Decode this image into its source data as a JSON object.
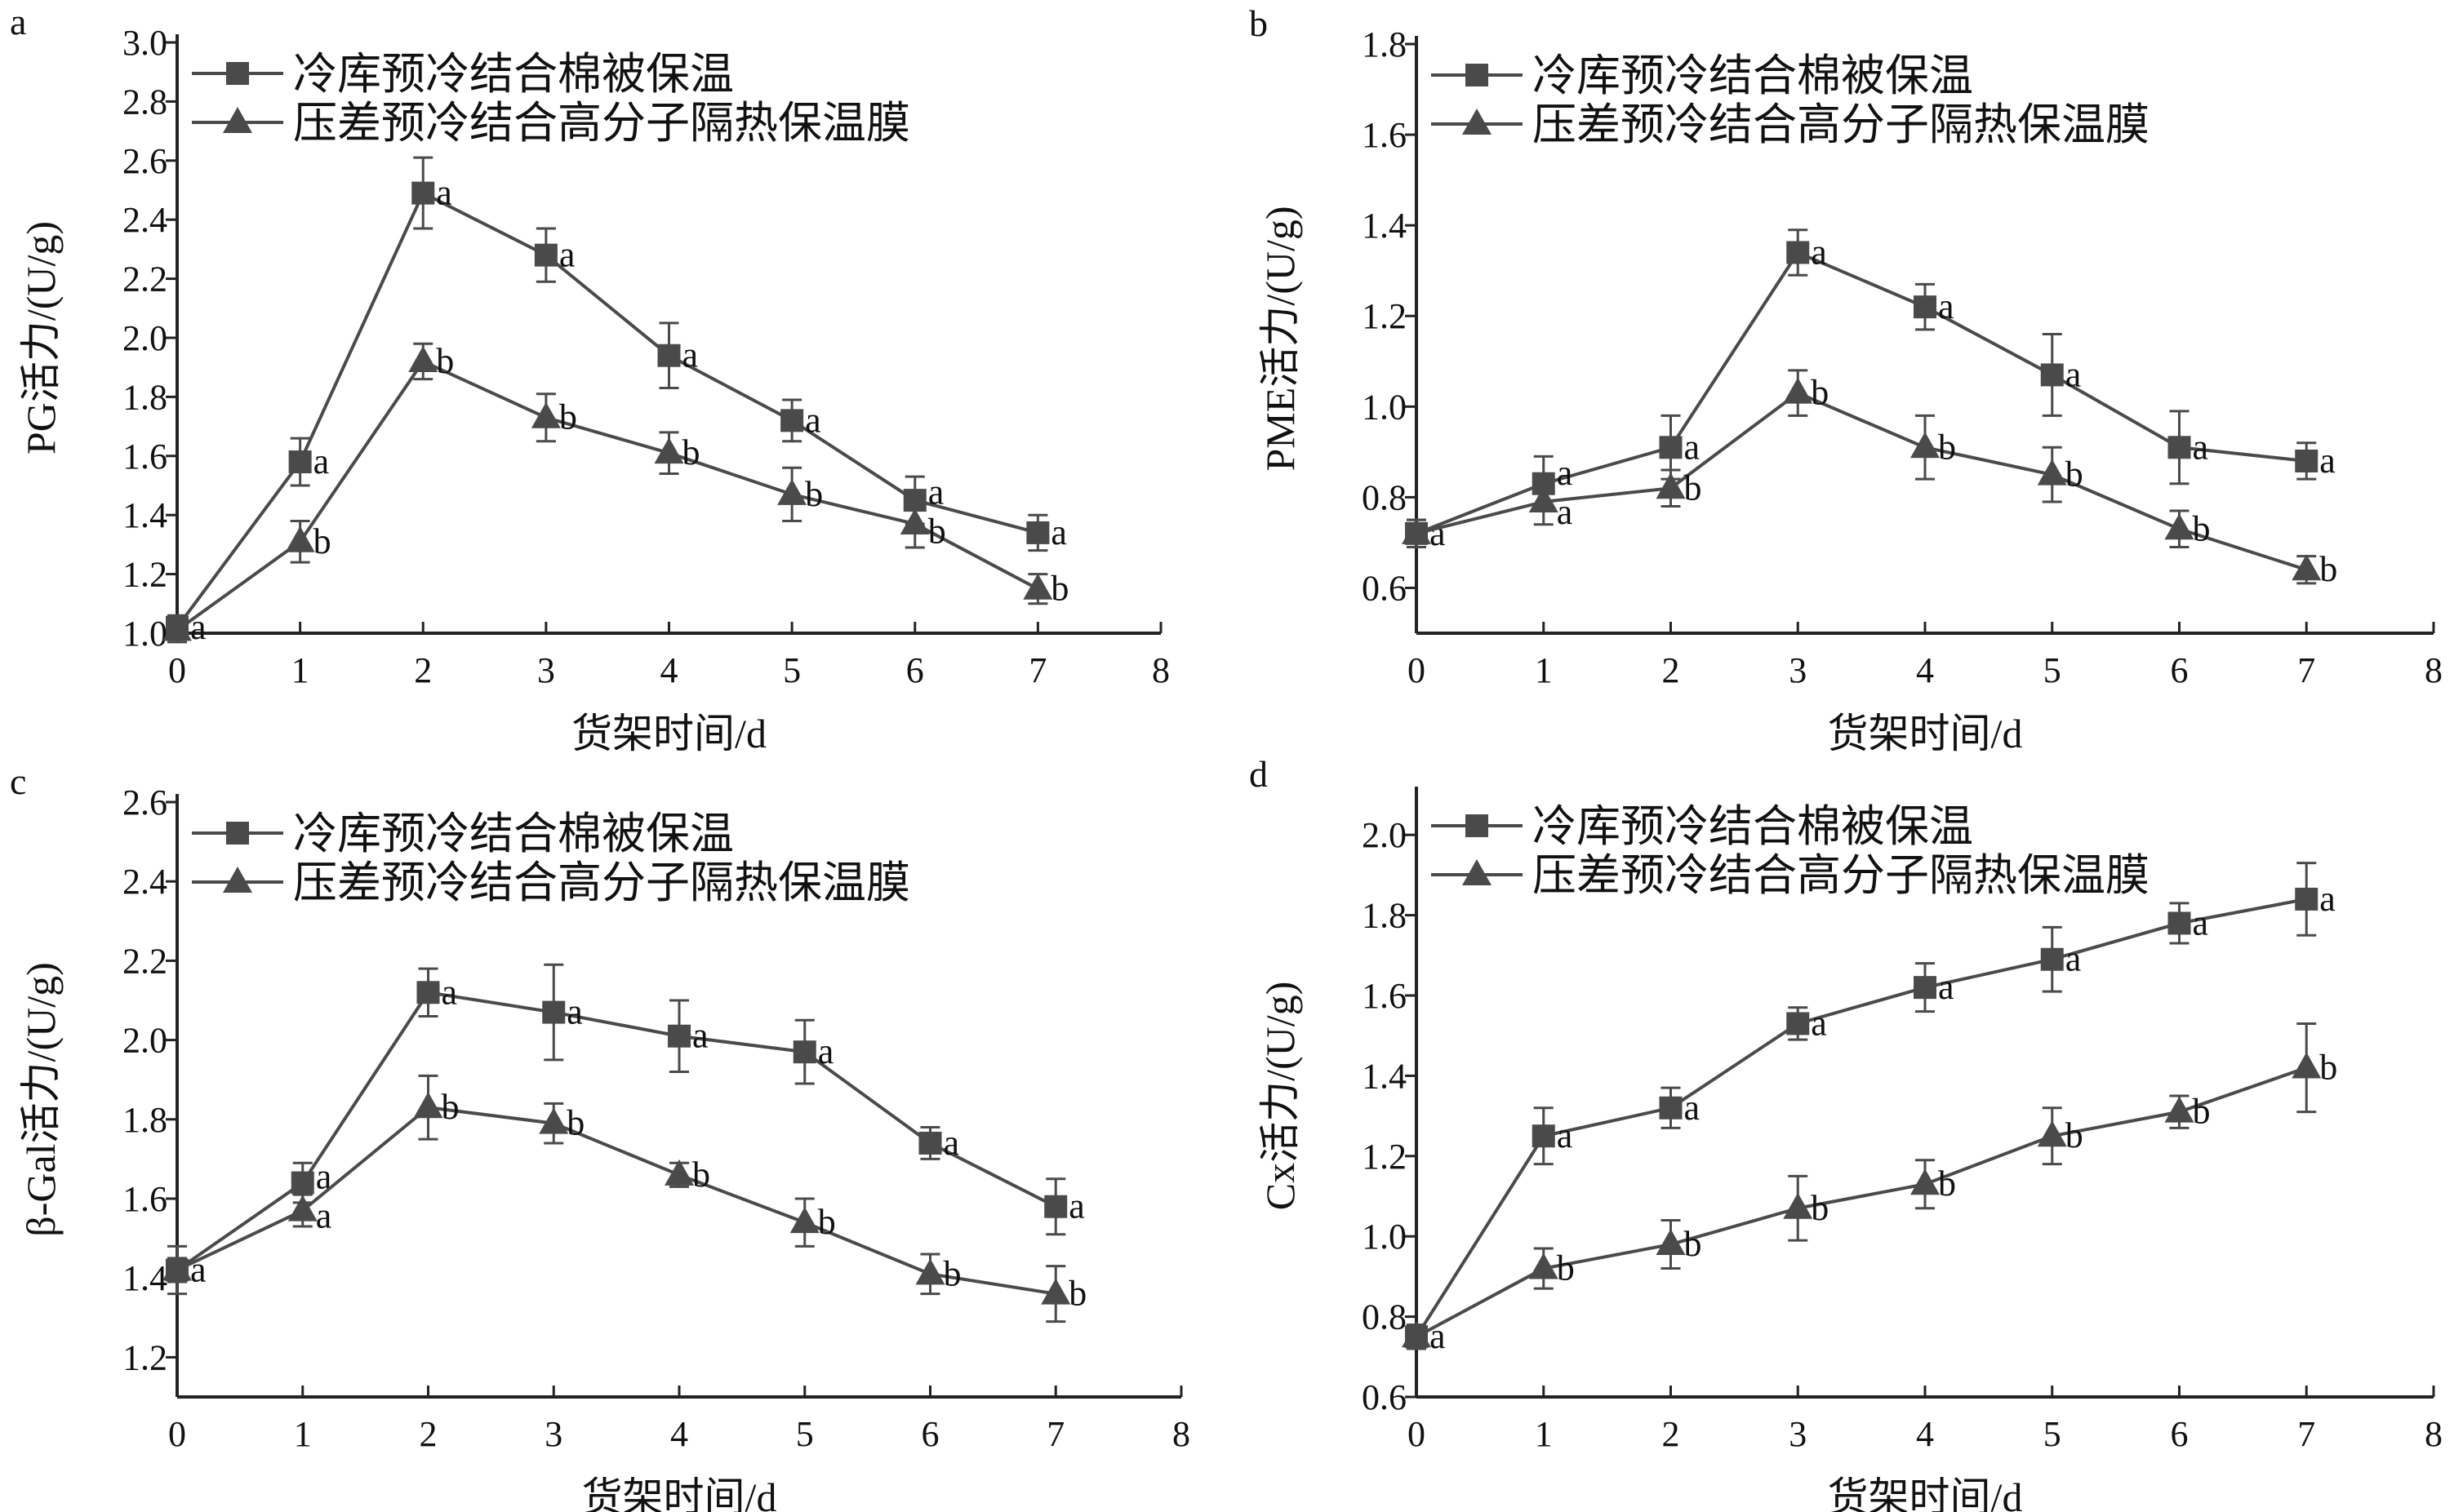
{
  "colors": {
    "series": "#4a4a4a",
    "axis": "#222222",
    "text": "#111111"
  },
  "chart_data": [
    {
      "type": "line",
      "panel_label": "a",
      "xlabel": "货架时间/d",
      "ylabel": "PG活力/(U/g)",
      "xlim": [
        0,
        8
      ],
      "ylim": [
        1.0,
        3.0
      ],
      "xticks": [
        "0",
        "1",
        "2",
        "3",
        "4",
        "5",
        "6",
        "7",
        "8"
      ],
      "yticks": [
        "1.0",
        "1.2",
        "1.4",
        "1.6",
        "1.8",
        "2.0",
        "2.2",
        "2.4",
        "2.6",
        "2.8",
        "3.0"
      ],
      "legend": "top-left",
      "x": [
        0,
        1,
        2,
        3,
        4,
        5,
        6,
        7
      ],
      "series": [
        {
          "name": "冷库预冷结合棉被保温",
          "marker": "square",
          "values": [
            1.02,
            1.58,
            2.49,
            2.28,
            1.94,
            1.72,
            1.45,
            1.34
          ],
          "errors": [
            0.04,
            0.08,
            0.12,
            0.09,
            0.11,
            0.07,
            0.08,
            0.06
          ],
          "labels": [
            "a",
            "a",
            "a",
            "a",
            "a",
            "a",
            "a",
            "a"
          ]
        },
        {
          "name": "压差预冷结合高分子隔热保温膜",
          "marker": "triangle",
          "values": [
            1.01,
            1.31,
            1.92,
            1.73,
            1.61,
            1.47,
            1.37,
            1.15
          ],
          "errors": [
            0.04,
            0.07,
            0.06,
            0.08,
            0.07,
            0.09,
            0.08,
            0.05
          ],
          "labels": [
            "",
            "b",
            "b",
            "b",
            "b",
            "b",
            "b",
            "b"
          ]
        }
      ]
    },
    {
      "type": "line",
      "panel_label": "b",
      "xlabel": "货架时间/d",
      "ylabel": "PME活力/(U/g)",
      "xlim": [
        0,
        8
      ],
      "ylim": [
        0.5,
        1.8
      ],
      "xticks": [
        "0",
        "1",
        "2",
        "3",
        "4",
        "5",
        "6",
        "7",
        "8"
      ],
      "yticks": [
        "0.6",
        "0.8",
        "1.0",
        "1.2",
        "1.4",
        "1.6",
        "1.8"
      ],
      "legend": "top-left",
      "x": [
        0,
        1,
        2,
        3,
        4,
        5,
        6,
        7
      ],
      "series": [
        {
          "name": "冷库预冷结合棉被保温",
          "marker": "square",
          "values": [
            0.72,
            0.83,
            0.91,
            1.34,
            1.22,
            1.07,
            0.91,
            0.88
          ],
          "errors": [
            0.03,
            0.06,
            0.07,
            0.05,
            0.05,
            0.09,
            0.08,
            0.04
          ],
          "labels": [
            "a",
            "a",
            "a",
            "a",
            "a",
            "a",
            "a",
            "a"
          ]
        },
        {
          "name": "压差预冷结合高分子隔热保温膜",
          "marker": "triangle",
          "values": [
            0.72,
            0.79,
            0.82,
            1.03,
            0.91,
            0.85,
            0.73,
            0.64
          ],
          "errors": [
            0.03,
            0.05,
            0.04,
            0.05,
            0.07,
            0.06,
            0.04,
            0.03
          ],
          "labels": [
            "",
            "a",
            "b",
            "b",
            "b",
            "b",
            "b",
            "b"
          ]
        }
      ]
    },
    {
      "type": "line",
      "panel_label": "c",
      "xlabel": "货架时间/d",
      "ylabel": "β-Gal活力/(U/g)",
      "xlim": [
        0,
        8
      ],
      "ylim": [
        1.1,
        2.6
      ],
      "xticks": [
        "0",
        "1",
        "2",
        "3",
        "4",
        "5",
        "6",
        "7",
        "8"
      ],
      "yticks": [
        "1.2",
        "1.4",
        "1.6",
        "1.8",
        "2.0",
        "2.2",
        "2.4",
        "2.6"
      ],
      "legend": "top-left",
      "x": [
        0,
        1,
        2,
        3,
        4,
        5,
        6,
        7
      ],
      "series": [
        {
          "name": "冷库预冷结合棉被保温",
          "marker": "square",
          "values": [
            1.42,
            1.64,
            2.12,
            2.07,
            2.01,
            1.97,
            1.74,
            1.58
          ],
          "errors": [
            0.06,
            0.05,
            0.06,
            0.12,
            0.09,
            0.08,
            0.04,
            0.07
          ],
          "labels": [
            "a",
            "a",
            "a",
            "a",
            "a",
            "a",
            "a",
            "a"
          ]
        },
        {
          "name": "压差预冷结合高分子隔热保温膜",
          "marker": "triangle",
          "values": [
            1.42,
            1.57,
            1.83,
            1.79,
            1.66,
            1.54,
            1.41,
            1.36
          ],
          "errors": [
            0.03,
            0.04,
            0.08,
            0.05,
            0.03,
            0.06,
            0.05,
            0.07
          ],
          "labels": [
            "",
            "a",
            "b",
            "b",
            "b",
            "b",
            "b",
            "b"
          ]
        }
      ]
    },
    {
      "type": "line",
      "panel_label": "d",
      "xlabel": "货架时间/d",
      "ylabel": "Cx活力/(U/g)",
      "xlim": [
        0,
        8
      ],
      "ylim": [
        0.6,
        2.1
      ],
      "xticks": [
        "0",
        "1",
        "2",
        "3",
        "4",
        "5",
        "6",
        "7",
        "8"
      ],
      "yticks": [
        "0.6",
        "0.8",
        "1.0",
        "1.2",
        "1.4",
        "1.6",
        "1.8",
        "2.0"
      ],
      "legend": "top-left",
      "x": [
        0,
        1,
        2,
        3,
        4,
        5,
        6,
        7
      ],
      "series": [
        {
          "name": "冷库预冷结合棉被保温",
          "marker": "square",
          "values": [
            0.75,
            1.25,
            1.32,
            1.53,
            1.62,
            1.69,
            1.78,
            1.84
          ],
          "errors": [
            0.03,
            0.07,
            0.05,
            0.04,
            0.06,
            0.08,
            0.05,
            0.09
          ],
          "labels": [
            "a",
            "a",
            "a",
            "a",
            "a",
            "a",
            "a",
            "a"
          ]
        },
        {
          "name": "压差预冷结合高分子隔热保温膜",
          "marker": "triangle",
          "values": [
            0.75,
            0.92,
            0.98,
            1.07,
            1.13,
            1.25,
            1.31,
            1.42
          ],
          "errors": [
            0.03,
            0.05,
            0.06,
            0.08,
            0.06,
            0.07,
            0.04,
            0.11
          ],
          "labels": [
            "",
            "b",
            "b",
            "b",
            "b",
            "b",
            "b",
            "b"
          ]
        }
      ]
    }
  ]
}
